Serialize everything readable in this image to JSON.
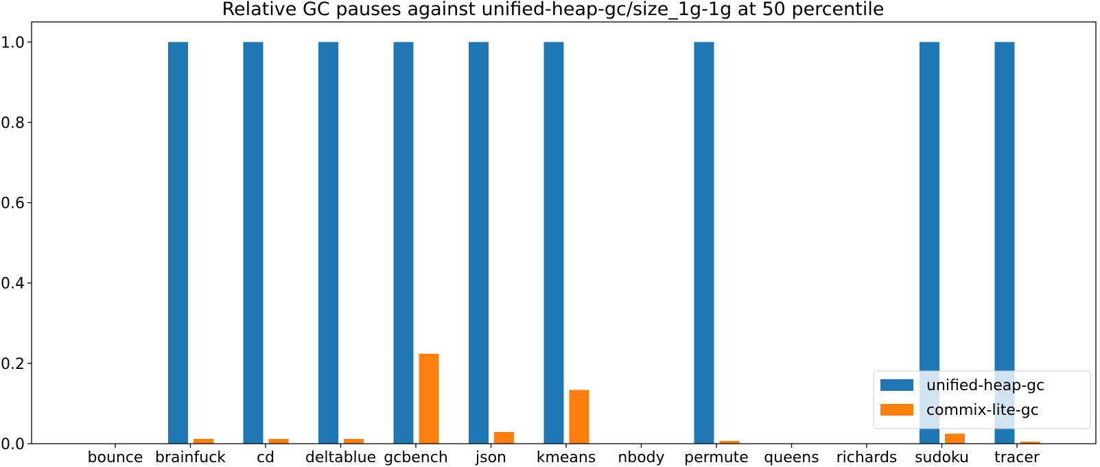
{
  "chart_data": {
    "type": "bar",
    "title": "Relative GC pauses against unified-heap-gc/size_1g-1g at 50 percentile",
    "xlabel": "",
    "ylabel": "",
    "categories": [
      "bounce",
      "brainfuck",
      "cd",
      "deltablue",
      "gcbench",
      "json",
      "kmeans",
      "nbody",
      "permute",
      "queens",
      "richards",
      "sudoku",
      "tracer"
    ],
    "series": [
      {
        "name": "unified-heap-gc",
        "color": "#1f77b4",
        "values": [
          null,
          1.0,
          1.0,
          1.0,
          1.0,
          1.0,
          1.0,
          null,
          1.0,
          null,
          null,
          1.0,
          1.0
        ]
      },
      {
        "name": "commix-lite-gc",
        "color": "#ff7f0e",
        "values": [
          null,
          0.012,
          0.012,
          0.012,
          0.224,
          0.029,
          0.134,
          null,
          0.007,
          null,
          null,
          0.025,
          0.005
        ]
      }
    ],
    "ylim": [
      0,
      1.05
    ],
    "yticks": [
      "0.0",
      "0.2",
      "0.4",
      "0.6",
      "0.8",
      "1.0"
    ],
    "legend_position": "lower-right",
    "grid": false
  }
}
